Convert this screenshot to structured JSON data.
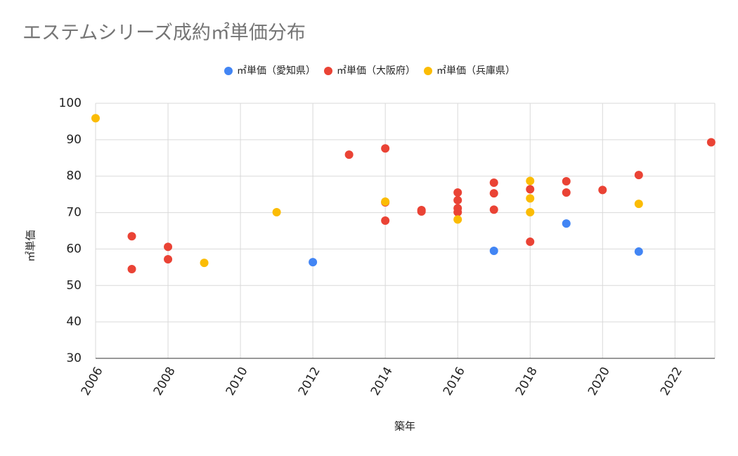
{
  "chart_data": {
    "type": "scatter",
    "title": "エステムシリーズ成約㎡単価分布",
    "x_label": "築年",
    "y_label": "㎡単価",
    "xlim": [
      2006,
      2023.1
    ],
    "xticks": [
      2006,
      2008,
      2010,
      2012,
      2014,
      2016,
      2018,
      2020,
      2022
    ],
    "ylim": [
      30,
      100
    ],
    "yticks": [
      30,
      40,
      50,
      60,
      70,
      80,
      90,
      100
    ],
    "grid": true,
    "legend": "top",
    "series": [
      {
        "name": "㎡単価（愛知県）",
        "color": "#4285f4",
        "x": [
          2012,
          2017,
          2019,
          2021
        ],
        "values": [
          56.4,
          59.5,
          67,
          59.3
        ]
      },
      {
        "name": "㎡単価（大阪府）",
        "color": "#ea4335",
        "x": [
          2007,
          2007,
          2008,
          2008,
          2013,
          2014,
          2014,
          2014,
          2015,
          2015,
          2016,
          2016,
          2016,
          2016,
          2017,
          2017,
          2017,
          2018,
          2018,
          2019,
          2019,
          2020,
          2021,
          2023
        ],
        "values": [
          63.5,
          54.5,
          60.6,
          57.2,
          85.9,
          87.6,
          72.8,
          67.8,
          70.7,
          70.3,
          75.5,
          73.4,
          71.2,
          70.1,
          78.2,
          75.3,
          70.8,
          76.4,
          62,
          78.6,
          75.5,
          76.2,
          80.3,
          89.3
        ]
      },
      {
        "name": "㎡単価（兵庫県）",
        "color": "#fbbc04",
        "x": [
          2006,
          2009,
          2011,
          2014,
          2016,
          2018,
          2018,
          2018,
          2021
        ],
        "values": [
          95.9,
          56.2,
          70.1,
          73,
          68.1,
          78.7,
          73.9,
          70.1,
          72.4
        ]
      }
    ]
  }
}
